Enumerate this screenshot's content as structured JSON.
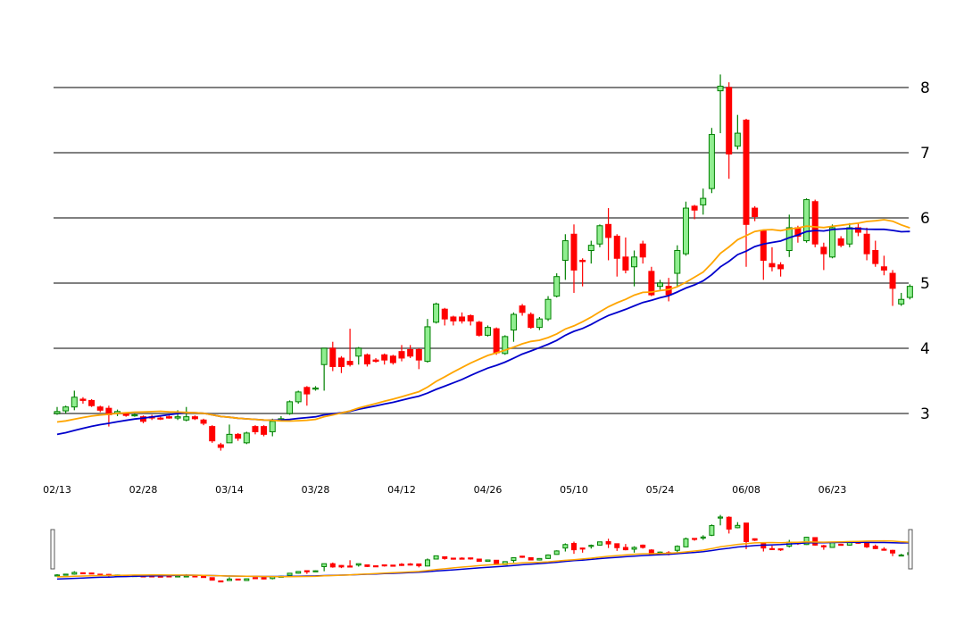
{
  "chart_data": {
    "type": "candlestick",
    "title": "",
    "y_axis_position": "right",
    "y_ticks": [
      3,
      4,
      5,
      6,
      7,
      8
    ],
    "ylim": [
      2.2,
      8.5
    ],
    "grid": "horizontal",
    "x_ticks": [
      {
        "label": "02/13",
        "index": 0
      },
      {
        "label": "02/28",
        "index": 10
      },
      {
        "label": "03/14",
        "index": 20
      },
      {
        "label": "03/28",
        "index": 30
      },
      {
        "label": "04/12",
        "index": 40
      },
      {
        "label": "04/26",
        "index": 50
      },
      {
        "label": "05/10",
        "index": 60
      },
      {
        "label": "05/24",
        "index": 70
      },
      {
        "label": "06/08",
        "index": 80
      },
      {
        "label": "06/23",
        "index": 90
      }
    ],
    "colors": {
      "up": "#008000",
      "up_fill": "#90ee90",
      "down": "#ff0000",
      "ma_long": "#0000cc",
      "ma_short": "#ffa500",
      "grid": "#808080"
    },
    "candles": [
      [
        3.0,
        3.1,
        2.98,
        3.03
      ],
      [
        3.04,
        3.12,
        3.0,
        3.1
      ],
      [
        3.1,
        3.35,
        3.05,
        3.25
      ],
      [
        3.22,
        3.25,
        3.15,
        3.2
      ],
      [
        3.2,
        3.22,
        3.1,
        3.12
      ],
      [
        3.1,
        3.12,
        3.02,
        3.05
      ],
      [
        3.08,
        3.12,
        2.8,
        2.98
      ],
      [
        3.0,
        3.06,
        2.96,
        3.03
      ],
      [
        3.0,
        3.02,
        2.95,
        2.97
      ],
      [
        2.97,
        3.0,
        2.95,
        2.98
      ],
      [
        2.95,
        2.97,
        2.85,
        2.88
      ],
      [
        2.95,
        2.98,
        2.9,
        2.93
      ],
      [
        2.93,
        2.95,
        2.9,
        2.92
      ],
      [
        2.95,
        2.97,
        2.92,
        2.93
      ],
      [
        2.93,
        3.05,
        2.9,
        2.95
      ],
      [
        2.9,
        3.1,
        2.88,
        2.95
      ],
      [
        2.95,
        2.97,
        2.9,
        2.92
      ],
      [
        2.9,
        2.92,
        2.82,
        2.85
      ],
      [
        2.8,
        2.82,
        2.55,
        2.58
      ],
      [
        2.52,
        2.55,
        2.43,
        2.48
      ],
      [
        2.55,
        2.83,
        2.55,
        2.68
      ],
      [
        2.68,
        2.7,
        2.58,
        2.62
      ],
      [
        2.55,
        2.72,
        2.53,
        2.7
      ],
      [
        2.8,
        2.82,
        2.68,
        2.72
      ],
      [
        2.8,
        2.82,
        2.65,
        2.68
      ],
      [
        2.72,
        2.92,
        2.65,
        2.88
      ],
      [
        2.9,
        2.96,
        2.88,
        2.92
      ],
      [
        3.0,
        3.2,
        2.98,
        3.18
      ],
      [
        3.18,
        3.35,
        3.15,
        3.33
      ],
      [
        3.4,
        3.42,
        3.12,
        3.3
      ],
      [
        3.38,
        3.42,
        3.35,
        3.39
      ],
      [
        3.75,
        4.0,
        3.35,
        4.0
      ],
      [
        4.0,
        4.1,
        3.65,
        3.72
      ],
      [
        3.85,
        3.88,
        3.62,
        3.72
      ],
      [
        3.8,
        4.3,
        3.72,
        3.75
      ],
      [
        3.88,
        4.02,
        3.75,
        4.0
      ],
      [
        3.9,
        3.92,
        3.72,
        3.76
      ],
      [
        3.82,
        3.85,
        3.78,
        3.8
      ],
      [
        3.9,
        3.92,
        3.75,
        3.82
      ],
      [
        3.88,
        3.9,
        3.75,
        3.78
      ],
      [
        3.95,
        4.05,
        3.8,
        3.85
      ],
      [
        3.98,
        4.05,
        3.85,
        3.88
      ],
      [
        3.98,
        4.0,
        3.68,
        3.82
      ],
      [
        3.8,
        4.45,
        3.78,
        4.33
      ],
      [
        4.4,
        4.7,
        4.38,
        4.68
      ],
      [
        4.6,
        4.62,
        4.35,
        4.45
      ],
      [
        4.48,
        4.5,
        4.35,
        4.42
      ],
      [
        4.48,
        4.55,
        4.38,
        4.42
      ],
      [
        4.5,
        4.52,
        4.35,
        4.42
      ],
      [
        4.4,
        4.42,
        4.18,
        4.2
      ],
      [
        4.2,
        4.35,
        4.18,
        4.32
      ],
      [
        4.3,
        4.32,
        3.9,
        3.93
      ],
      [
        3.92,
        4.2,
        3.9,
        4.18
      ],
      [
        4.28,
        4.55,
        4.1,
        4.52
      ],
      [
        4.65,
        4.68,
        4.5,
        4.55
      ],
      [
        4.52,
        4.55,
        4.3,
        4.32
      ],
      [
        4.32,
        4.48,
        4.28,
        4.45
      ],
      [
        4.45,
        4.8,
        4.42,
        4.75
      ],
      [
        4.8,
        5.15,
        4.78,
        5.1
      ],
      [
        5.35,
        5.75,
        5.05,
        5.65
      ],
      [
        5.75,
        5.9,
        4.85,
        5.2
      ],
      [
        5.35,
        5.38,
        4.95,
        5.33
      ],
      [
        5.5,
        5.65,
        5.3,
        5.58
      ],
      [
        5.6,
        5.9,
        5.55,
        5.88
      ],
      [
        5.9,
        6.15,
        5.35,
        5.7
      ],
      [
        5.72,
        5.75,
        5.1,
        5.38
      ],
      [
        5.4,
        5.7,
        5.15,
        5.2
      ],
      [
        5.25,
        5.5,
        4.95,
        5.4
      ],
      [
        5.6,
        5.65,
        5.3,
        5.4
      ],
      [
        5.18,
        5.25,
        4.8,
        4.82
      ],
      [
        4.95,
        5.05,
        4.9,
        5.0
      ],
      [
        4.95,
        5.08,
        4.72,
        4.82
      ],
      [
        5.15,
        5.58,
        4.95,
        5.5
      ],
      [
        5.45,
        6.25,
        5.42,
        6.15
      ],
      [
        6.18,
        6.2,
        5.98,
        6.12
      ],
      [
        6.2,
        6.45,
        6.05,
        6.3
      ],
      [
        6.45,
        7.38,
        6.38,
        7.28
      ],
      [
        7.95,
        8.2,
        7.3,
        8.02
      ],
      [
        8.0,
        8.08,
        6.6,
        6.98
      ],
      [
        7.1,
        7.58,
        7.05,
        7.3
      ],
      [
        7.5,
        7.52,
        5.25,
        5.9
      ],
      [
        6.15,
        6.18,
        5.95,
        6.02
      ],
      [
        5.8,
        5.82,
        5.05,
        5.35
      ],
      [
        5.3,
        5.55,
        5.18,
        5.25
      ],
      [
        5.28,
        5.32,
        5.1,
        5.22
      ],
      [
        5.5,
        6.05,
        5.4,
        5.85
      ],
      [
        5.85,
        5.88,
        5.62,
        5.72
      ],
      [
        5.65,
        6.3,
        5.62,
        6.28
      ],
      [
        6.25,
        6.28,
        5.55,
        5.6
      ],
      [
        5.55,
        5.62,
        5.2,
        5.45
      ],
      [
        5.4,
        5.9,
        5.38,
        5.85
      ],
      [
        5.68,
        5.72,
        5.55,
        5.58
      ],
      [
        5.6,
        5.92,
        5.55,
        5.85
      ],
      [
        5.85,
        5.92,
        5.72,
        5.78
      ],
      [
        5.75,
        5.85,
        5.35,
        5.45
      ],
      [
        5.5,
        5.65,
        5.25,
        5.3
      ],
      [
        5.25,
        5.42,
        5.12,
        5.2
      ],
      [
        5.15,
        5.2,
        4.65,
        4.92
      ],
      [
        4.68,
        4.85,
        4.65,
        4.75
      ],
      [
        4.78,
        4.98,
        4.75,
        4.95
      ]
    ]
  }
}
